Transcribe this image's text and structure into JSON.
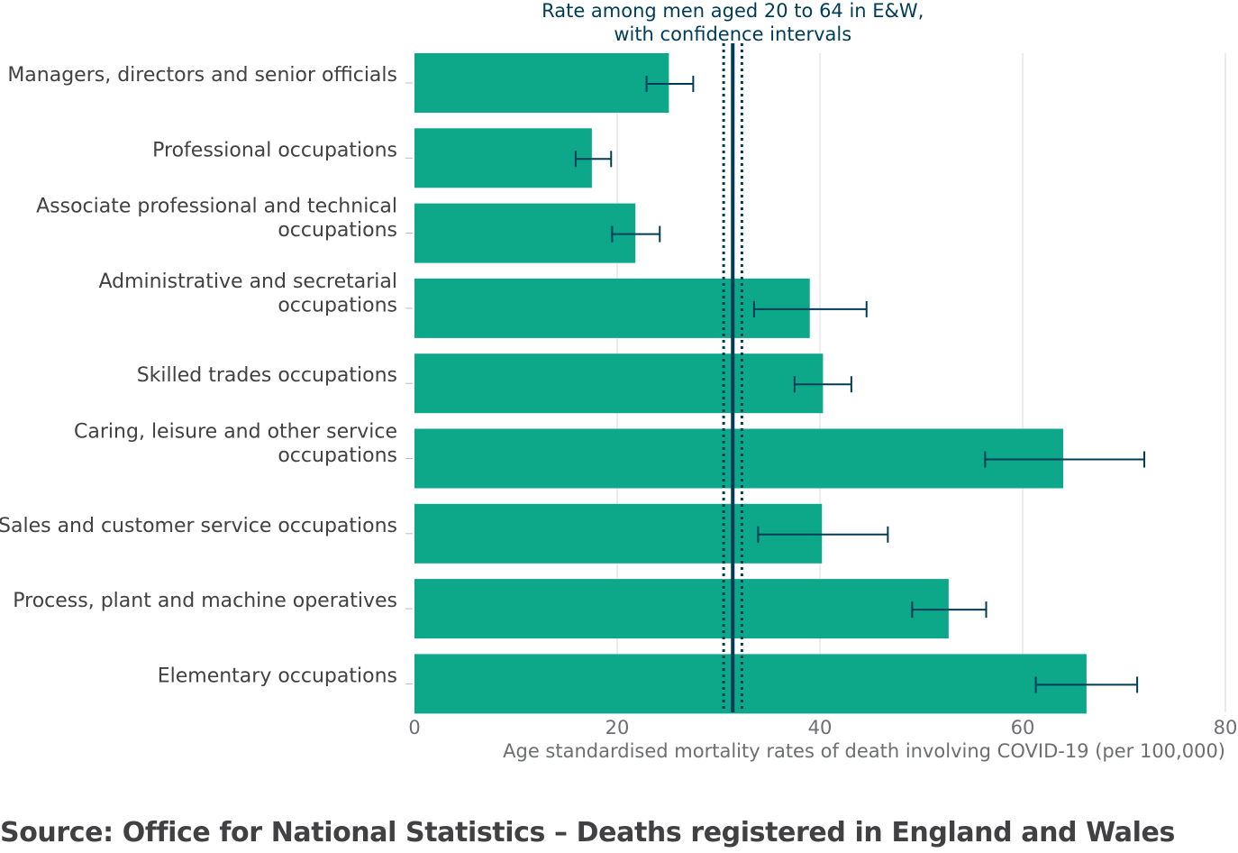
{
  "chart_data": {
    "type": "bar",
    "orientation": "horizontal",
    "categories": [
      [
        "Managers, directors and senior officials"
      ],
      [
        "Professional occupations"
      ],
      [
        "Associate professional and technical",
        "occupations"
      ],
      [
        "Administrative and secretarial",
        "occupations"
      ],
      [
        "Skilled trades occupations"
      ],
      [
        "Caring, leisure and other service",
        "occupations"
      ],
      [
        "Sales and customer service occupations"
      ],
      [
        "Process, plant and machine operatives"
      ],
      [
        "Elementary occupations"
      ]
    ],
    "values": [
      25.1,
      17.5,
      21.8,
      39.0,
      40.3,
      64.0,
      40.2,
      52.7,
      66.3
    ],
    "ci_lower": [
      22.9,
      15.9,
      19.5,
      33.5,
      37.5,
      56.3,
      33.9,
      49.1,
      61.3
    ],
    "ci_upper": [
      27.5,
      19.4,
      24.2,
      44.6,
      43.1,
      72.0,
      46.7,
      56.4,
      71.3
    ],
    "xlim": [
      0,
      80
    ],
    "xticks": [
      0,
      20,
      40,
      60,
      80
    ],
    "xlabel": "Age standardised mortality rates of death involving COVID-19 (per 100,000)",
    "grid": true,
    "reference_line": {
      "label": [
        "Rate among men aged 20 to 64 in E&W,",
        "with confidence intervals"
      ],
      "value": 31.4,
      "ci_lower": 30.5,
      "ci_upper": 32.3
    },
    "colors": {
      "bar": "#0da789",
      "reference": "#003c57",
      "grid": "#d9d9d9",
      "errorbar": "#003c57"
    }
  },
  "source": "Source: Office for National Statistics – Deaths registered in England and Wales"
}
